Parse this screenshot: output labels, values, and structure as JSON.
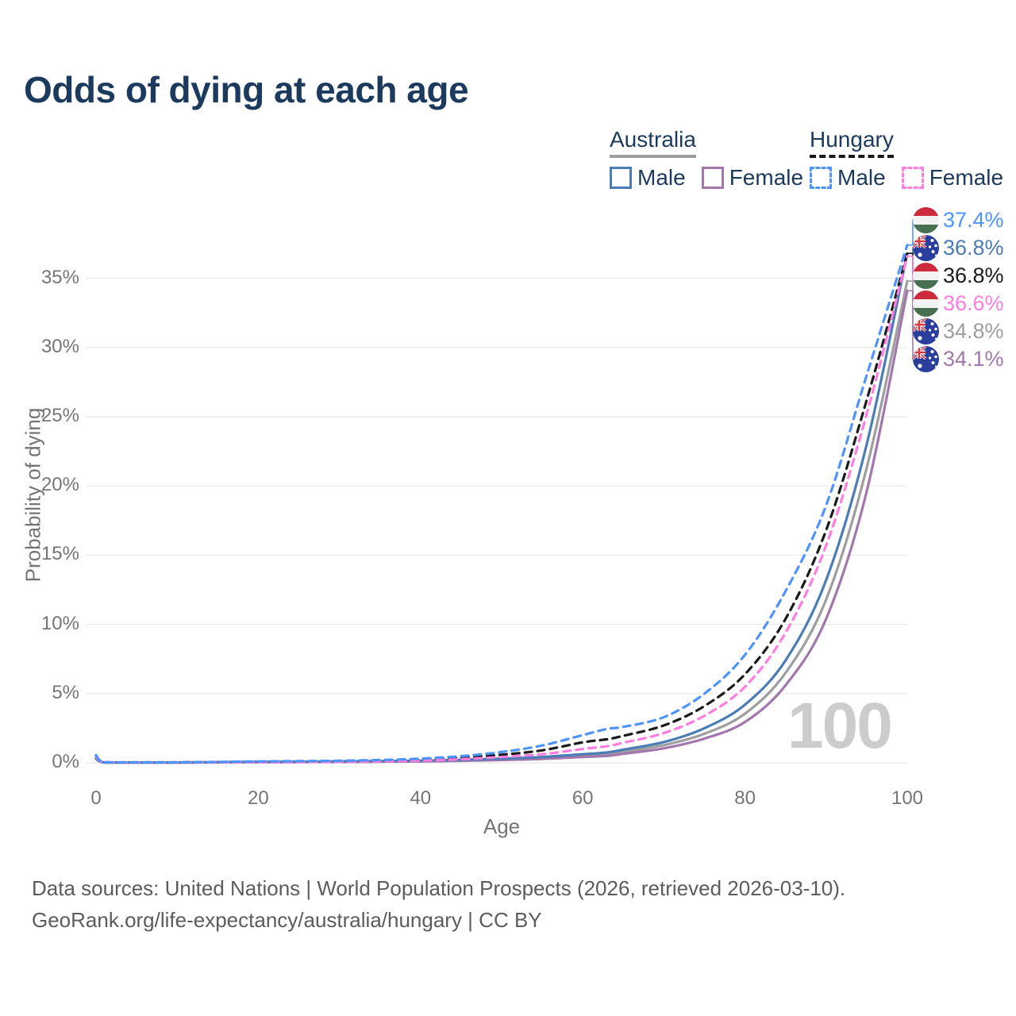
{
  "title": "Odds of dying at each age",
  "watermark": "100",
  "legend": {
    "groups": [
      {
        "label": "Australia",
        "line_style": "solid",
        "underline_color": "#9e9e9e",
        "items": [
          {
            "label": "Male",
            "color": "#4a7cb5"
          },
          {
            "label": "Female",
            "color": "#a377ad"
          }
        ]
      },
      {
        "label": "Hungary",
        "line_style": "dashed",
        "underline_color": "#1a1a1a",
        "items": [
          {
            "label": "Male",
            "color": "#4d94ff"
          },
          {
            "label": "Female",
            "color": "#ff7ce0"
          }
        ]
      }
    ]
  },
  "footer": {
    "line1": "Data sources: United Nations | World Population Prospects (2026, retrieved 2026-03-10).",
    "line2": "GeoRank.org/life-expectancy/australia/hungary | CC BY"
  },
  "colors": {
    "title": "#1c3a5e",
    "axis_text": "#757575",
    "grid": "#ebebeb",
    "watermark": "#cccccc",
    "footer_text": "#5c5c5c",
    "hungary_flag_red": "#cd2a3e",
    "hungary_flag_white": "#f2f2f2",
    "hungary_flag_green": "#477050",
    "australia_flag_blue": "#2a3f9d",
    "australia_flag_red": "#d63a3a",
    "australia_flag_white": "#ffffff"
  },
  "chart_data": {
    "type": "line",
    "title": "Odds of dying at each age",
    "xlabel": "Age",
    "ylabel": "Probability of dying",
    "xlim": [
      0,
      100
    ],
    "ylim": [
      0,
      35
    ],
    "grid": "horizontal",
    "legend_position": "top-right",
    "x_ticks": [
      0,
      20,
      40,
      60,
      80,
      100
    ],
    "y_ticks": [
      {
        "value": 0,
        "label": "0%"
      },
      {
        "value": 5,
        "label": "5%"
      },
      {
        "value": 10,
        "label": "10%"
      },
      {
        "value": 15,
        "label": "15%"
      },
      {
        "value": 20,
        "label": "20%"
      },
      {
        "value": 25,
        "label": "25%"
      },
      {
        "value": 30,
        "label": "30%"
      },
      {
        "value": 35,
        "label": "35%"
      }
    ],
    "ages": [
      0,
      1,
      5,
      10,
      15,
      20,
      25,
      30,
      35,
      40,
      45,
      50,
      55,
      60,
      63,
      65,
      70,
      75,
      80,
      85,
      90,
      95,
      100
    ],
    "series": [
      {
        "name": "Hungary Male",
        "country": "Hungary",
        "sex": "Male",
        "flag": "hungary",
        "dash": true,
        "color": "#4d94ff",
        "end_label": "37.4%",
        "end_value": 37.4,
        "values": [
          0.55,
          0.05,
          0.03,
          0.03,
          0.06,
          0.1,
          0.12,
          0.15,
          0.2,
          0.3,
          0.48,
          0.78,
          1.25,
          2.0,
          2.45,
          2.6,
          3.3,
          5.0,
          7.8,
          12.4,
          18.6,
          28.0,
          37.4
        ]
      },
      {
        "name": "Australia Male",
        "country": "Australia",
        "sex": "Male",
        "flag": "australia",
        "dash": false,
        "color": "#4a7cb5",
        "end_label": "36.8%",
        "end_value": 36.8,
        "values": [
          0.35,
          0.03,
          0.02,
          0.02,
          0.05,
          0.07,
          0.08,
          0.1,
          0.12,
          0.15,
          0.22,
          0.3,
          0.42,
          0.62,
          0.75,
          0.95,
          1.5,
          2.5,
          4.2,
          7.4,
          13.2,
          23.0,
          36.8
        ]
      },
      {
        "name": "Hungary Both sexes",
        "country": "Hungary",
        "sex": "Both",
        "flag": "hungary",
        "dash": true,
        "color": "#1a1a1a",
        "end_label": "36.8%",
        "end_value": 36.8,
        "values": [
          0.5,
          0.04,
          0.03,
          0.03,
          0.05,
          0.08,
          0.09,
          0.11,
          0.15,
          0.22,
          0.36,
          0.58,
          0.9,
          1.48,
          1.7,
          1.95,
          2.7,
          4.1,
          6.4,
          10.4,
          16.8,
          26.2,
          36.8
        ]
      },
      {
        "name": "Hungary Female",
        "country": "Hungary",
        "sex": "Female",
        "flag": "hungary",
        "dash": true,
        "color": "#ff7ce0",
        "end_label": "36.6%",
        "end_value": 36.6,
        "values": [
          0.45,
          0.04,
          0.02,
          0.02,
          0.04,
          0.05,
          0.06,
          0.08,
          0.1,
          0.15,
          0.26,
          0.42,
          0.62,
          1.0,
          1.2,
          1.45,
          2.15,
          3.4,
          5.5,
          9.4,
          15.7,
          25.2,
          36.6
        ]
      },
      {
        "name": "Australia Both sexes",
        "country": "Australia",
        "sex": "Both",
        "flag": "australia",
        "dash": false,
        "color": "#9e9e9e",
        "end_label": "34.8%",
        "end_value": 34.8,
        "values": [
          0.3,
          0.03,
          0.02,
          0.02,
          0.04,
          0.05,
          0.06,
          0.08,
          0.09,
          0.12,
          0.18,
          0.25,
          0.35,
          0.52,
          0.62,
          0.8,
          1.28,
          2.1,
          3.55,
          6.5,
          11.8,
          21.3,
          34.8
        ]
      },
      {
        "name": "Australia Female",
        "country": "Australia",
        "sex": "Female",
        "flag": "australia",
        "dash": false,
        "color": "#a377ad",
        "end_label": "34.1%",
        "end_value": 34.1,
        "values": [
          0.28,
          0.03,
          0.01,
          0.01,
          0.03,
          0.04,
          0.05,
          0.06,
          0.08,
          0.1,
          0.14,
          0.2,
          0.28,
          0.42,
          0.5,
          0.65,
          1.05,
          1.75,
          2.95,
          5.6,
          10.4,
          19.6,
          34.1
        ]
      }
    ]
  }
}
